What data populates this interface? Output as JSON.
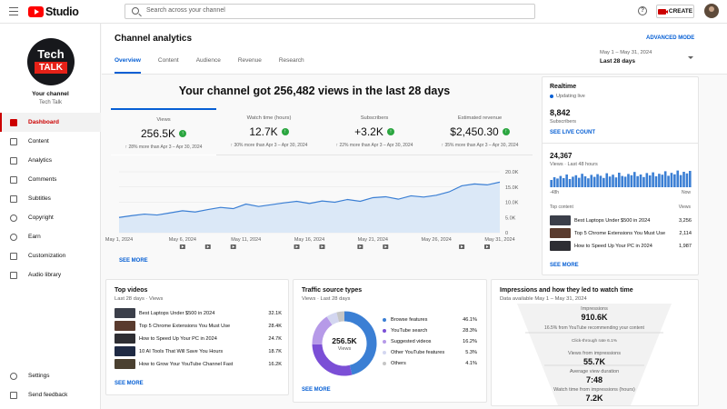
{
  "topbar": {
    "search_placeholder": "Search across your channel",
    "logo_text": "Studio",
    "help_icon": "?",
    "create_label": "CREATE"
  },
  "channel": {
    "avatar_line1": "Tech",
    "avatar_line2": "TALK",
    "label": "Your channel",
    "name": "Tech Talk"
  },
  "nav": {
    "items": [
      {
        "label": "Dashboard",
        "icon": "dashboard-icon",
        "active": true
      },
      {
        "label": "Content",
        "icon": "content-icon"
      },
      {
        "label": "Analytics",
        "icon": "analytics-icon"
      },
      {
        "label": "Comments",
        "icon": "comments-icon"
      },
      {
        "label": "Subtitles",
        "icon": "subtitles-icon"
      },
      {
        "label": "Copyright",
        "icon": "copyright-icon"
      },
      {
        "label": "Earn",
        "icon": "earn-icon"
      },
      {
        "label": "Customization",
        "icon": "customization-icon"
      },
      {
        "label": "Audio library",
        "icon": "audio-library-icon"
      }
    ],
    "bottom": [
      {
        "label": "Settings",
        "icon": "settings-icon"
      },
      {
        "label": "Send feedback",
        "icon": "feedback-icon"
      }
    ]
  },
  "header": {
    "title": "Channel analytics",
    "advanced": "ADVANCED MODE",
    "tabs": [
      "Overview",
      "Content",
      "Audience",
      "Revenue",
      "Research"
    ],
    "date_range": "May 1 – May 31, 2024",
    "period": "Last 28 days"
  },
  "overview": {
    "headline": "Your channel got 256,482 views in the last 28 days",
    "metrics": [
      {
        "label": "Views",
        "value": "256.5K",
        "delta": "↑ 28% more than Apr 3 – Apr 30, 2024"
      },
      {
        "label": "Watch time (hours)",
        "value": "12.7K",
        "delta": "↑ 30% more than Apr 3 – Apr 30, 2024"
      },
      {
        "label": "Subscribers",
        "value": "+3.2K",
        "delta": "↑ 22% more than Apr 3 – Apr 30, 2024"
      },
      {
        "label": "Estimated revenue",
        "value": "$2,450.30",
        "delta": "↑ 35% more than Apr 3 – Apr 30, 2024"
      }
    ],
    "see_more": "SEE MORE"
  },
  "chart_data": {
    "type": "area",
    "x": [
      "May 1",
      "May 2",
      "May 3",
      "May 4",
      "May 5",
      "May 6",
      "May 7",
      "May 8",
      "May 9",
      "May 10",
      "May 11",
      "May 12",
      "May 13",
      "May 14",
      "May 15",
      "May 16",
      "May 17",
      "May 18",
      "May 19",
      "May 20",
      "May 21",
      "May 22",
      "May 23",
      "May 24",
      "May 25",
      "May 26",
      "May 27",
      "May 28",
      "May 29",
      "May 30",
      "May 31"
    ],
    "series": [
      {
        "values": [
          5000,
          5600,
          6100,
          5800,
          6500,
          7200,
          6800,
          7600,
          8300,
          7900,
          9400,
          8600,
          9200,
          9800,
          10300,
          9600,
          10400,
          10000,
          10900,
          10300,
          11500,
          11800,
          11000,
          12100,
          11700,
          12300,
          13400,
          15400,
          16000,
          15700,
          16600
        ]
      }
    ],
    "xticks": [
      "May 1, 2024",
      "May 6, 2024",
      "May 11, 2024",
      "May 16, 2024",
      "May 21, 2024",
      "May 26, 2024",
      "May 31, 2024"
    ],
    "yticks": [
      "0",
      "5.0K",
      "10.0K",
      "15.0K",
      "20.0K"
    ],
    "ylim": [
      0,
      20000
    ],
    "video_markers": [
      "May 6",
      "May 8",
      "May 10",
      "May 15",
      "May 17",
      "May 20",
      "May 22",
      "May 28",
      "May 30"
    ],
    "grid": true,
    "colors": {
      "line": "#3b7fd4",
      "fill": "#dbe8f7"
    }
  },
  "realtime": {
    "title": "Realtime",
    "status": "Updating live",
    "subs_value": "8,842",
    "subs_label": "Subscribers",
    "see_live": "SEE LIVE COUNT",
    "views_value": "24,367",
    "views_label": "Views · Last 48 hours",
    "bar_left": "-48h",
    "bar_right": "Now",
    "bars": [
      40,
      55,
      48,
      62,
      50,
      70,
      45,
      58,
      66,
      52,
      74,
      60,
      49,
      68,
      57,
      72,
      63,
      51,
      77,
      59,
      69,
      54,
      80,
      62,
      58,
      73,
      66,
      84,
      61,
      70,
      56,
      78,
      65,
      82,
      60,
      74,
      69,
      88,
      63,
      79,
      71,
      92,
      67,
      85,
      76,
      90
    ],
    "top_content_label": "Top content",
    "views_col": "Views",
    "items": [
      {
        "title": "Best Laptops Under $500 in 2024",
        "views": "3,256"
      },
      {
        "title": "Top 5 Chrome Extensions You Must Use",
        "views": "2,114"
      },
      {
        "title": "How to Speed Up Your PC in 2024",
        "views": "1,987"
      }
    ],
    "see_more": "SEE MORE"
  },
  "top_videos": {
    "title": "Top videos",
    "subtitle": "Last 28 days · Views",
    "items": [
      {
        "title": "Best Laptops Under $500 in 2024",
        "views": "32.1K"
      },
      {
        "title": "Top 5 Chrome Extensions You Must Use",
        "views": "28.4K"
      },
      {
        "title": "How to Speed Up Your PC in 2024",
        "views": "24.7K"
      },
      {
        "title": "10 AI Tools That Will Save You Hours",
        "views": "18.7K"
      },
      {
        "title": "How to Grow Your YouTube Channel Fast",
        "views": "16.2K"
      }
    ],
    "see_more": "SEE MORE"
  },
  "traffic": {
    "title": "Traffic source types",
    "subtitle": "Views · Last 28 days",
    "center_value": "256.5K",
    "center_label": "Views",
    "sources": [
      {
        "name": "Browse features",
        "pct": "46.1%",
        "value": 46.1,
        "color": "#3b7fd4"
      },
      {
        "name": "YouTube search",
        "pct": "28.3%",
        "value": 28.3,
        "color": "#7b4fd6"
      },
      {
        "name": "Suggested videos",
        "pct": "16.2%",
        "value": 16.2,
        "color": "#b69ae8"
      },
      {
        "name": "Other YouTube features",
        "pct": "5.3%",
        "value": 5.3,
        "color": "#d3d6f0"
      },
      {
        "name": "Others",
        "pct": "4.1%",
        "value": 4.1,
        "color": "#c6c6c6"
      }
    ],
    "see_more": "SEE MORE"
  },
  "funnel": {
    "title": "Impressions and how they led to watch time",
    "subtitle": "Data available May 1 – May 31, 2024",
    "impressions_label": "Impressions",
    "impressions_value": "910.6K",
    "recommend_note": "16.5% from YouTube recommending your content",
    "ctr_note": "Click-through rate 6.1%",
    "views_label": "Views from impressions",
    "views_value": "55.7K",
    "duration_label": "Average view duration",
    "duration_value": "7:48",
    "watch_label": "Watch time from impressions (hours)",
    "watch_value": "7.2K"
  }
}
